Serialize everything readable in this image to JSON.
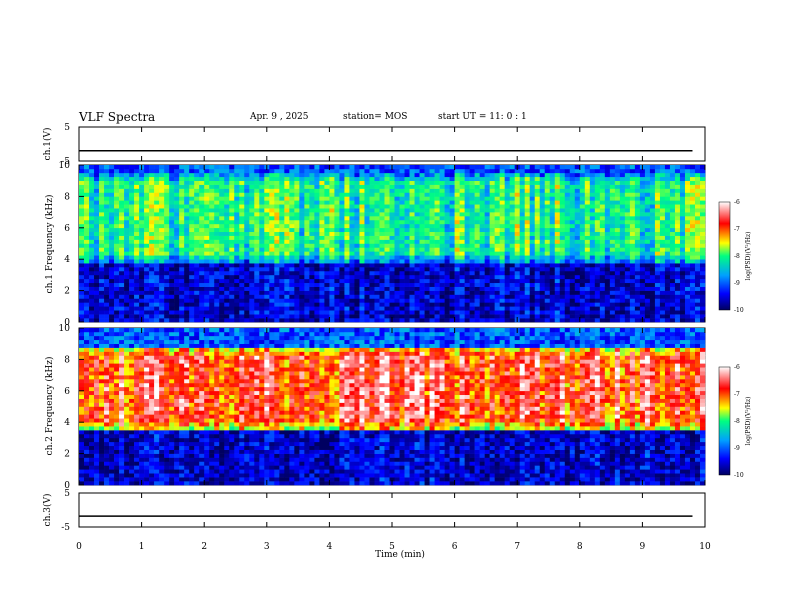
{
  "header": {
    "title": "VLF Spectra",
    "date": "Apr. 9 , 2025",
    "station": "station= MOS",
    "start": "start UT = 11: 0 : 1"
  },
  "chart_data": [
    {
      "type": "line",
      "panel": "ch1-voltage",
      "ylabel": "ch.1(V)",
      "ylim": [
        -5,
        5
      ],
      "yticks": [
        "5",
        "-5"
      ],
      "series": [
        {
          "x": [
            0,
            9.8
          ],
          "values": [
            -2.0,
            -2.0
          ]
        }
      ]
    },
    {
      "type": "heatmap",
      "panel": "ch1-spectrogram",
      "ylabel": "ch.1 Frequency (kHz)",
      "ylim": [
        0,
        10
      ],
      "yticks": [
        "0",
        "2",
        "4",
        "6",
        "8",
        "10"
      ],
      "colorbar": {
        "label": "log(PSD)(V²/Hz)",
        "range": [
          -10,
          -6
        ],
        "ticks": [
          "-6",
          "-7",
          "-8",
          "-9",
          "-10"
        ]
      },
      "band_khz": [
        3.8,
        9.5
      ],
      "level_log_psd": -8.0
    },
    {
      "type": "heatmap",
      "panel": "ch2-spectrogram",
      "ylabel": "ch.2 Frequency (kHz)",
      "ylim": [
        0,
        10
      ],
      "yticks": [
        "0",
        "2",
        "4",
        "6",
        "8",
        "10"
      ],
      "colorbar": {
        "label": "log(PSD)(V²/Hz)",
        "range": [
          -10,
          -6
        ],
        "ticks": [
          "-6",
          "-7",
          "-8",
          "-9",
          "-10"
        ]
      },
      "band_khz": [
        3.6,
        8.8
      ],
      "level_log_psd": -6.6
    },
    {
      "type": "line",
      "panel": "ch3-voltage",
      "ylabel": "ch.3(V)",
      "ylim": [
        -5,
        5
      ],
      "yticks": [
        "5",
        "-5"
      ],
      "series": [
        {
          "x": [
            0,
            9.8
          ],
          "values": [
            -1.8,
            -1.8
          ]
        }
      ]
    }
  ],
  "x_axis": {
    "label": "Time (min)",
    "range": [
      0,
      10
    ],
    "ticks": [
      "0",
      "1",
      "2",
      "3",
      "4",
      "5",
      "6",
      "7",
      "8",
      "9",
      "10"
    ]
  },
  "colors": {
    "colorscale": [
      "#000060",
      "#0000ff",
      "#00a0ff",
      "#00ff80",
      "#ffff00",
      "#ff0000",
      "#ffffff"
    ]
  }
}
